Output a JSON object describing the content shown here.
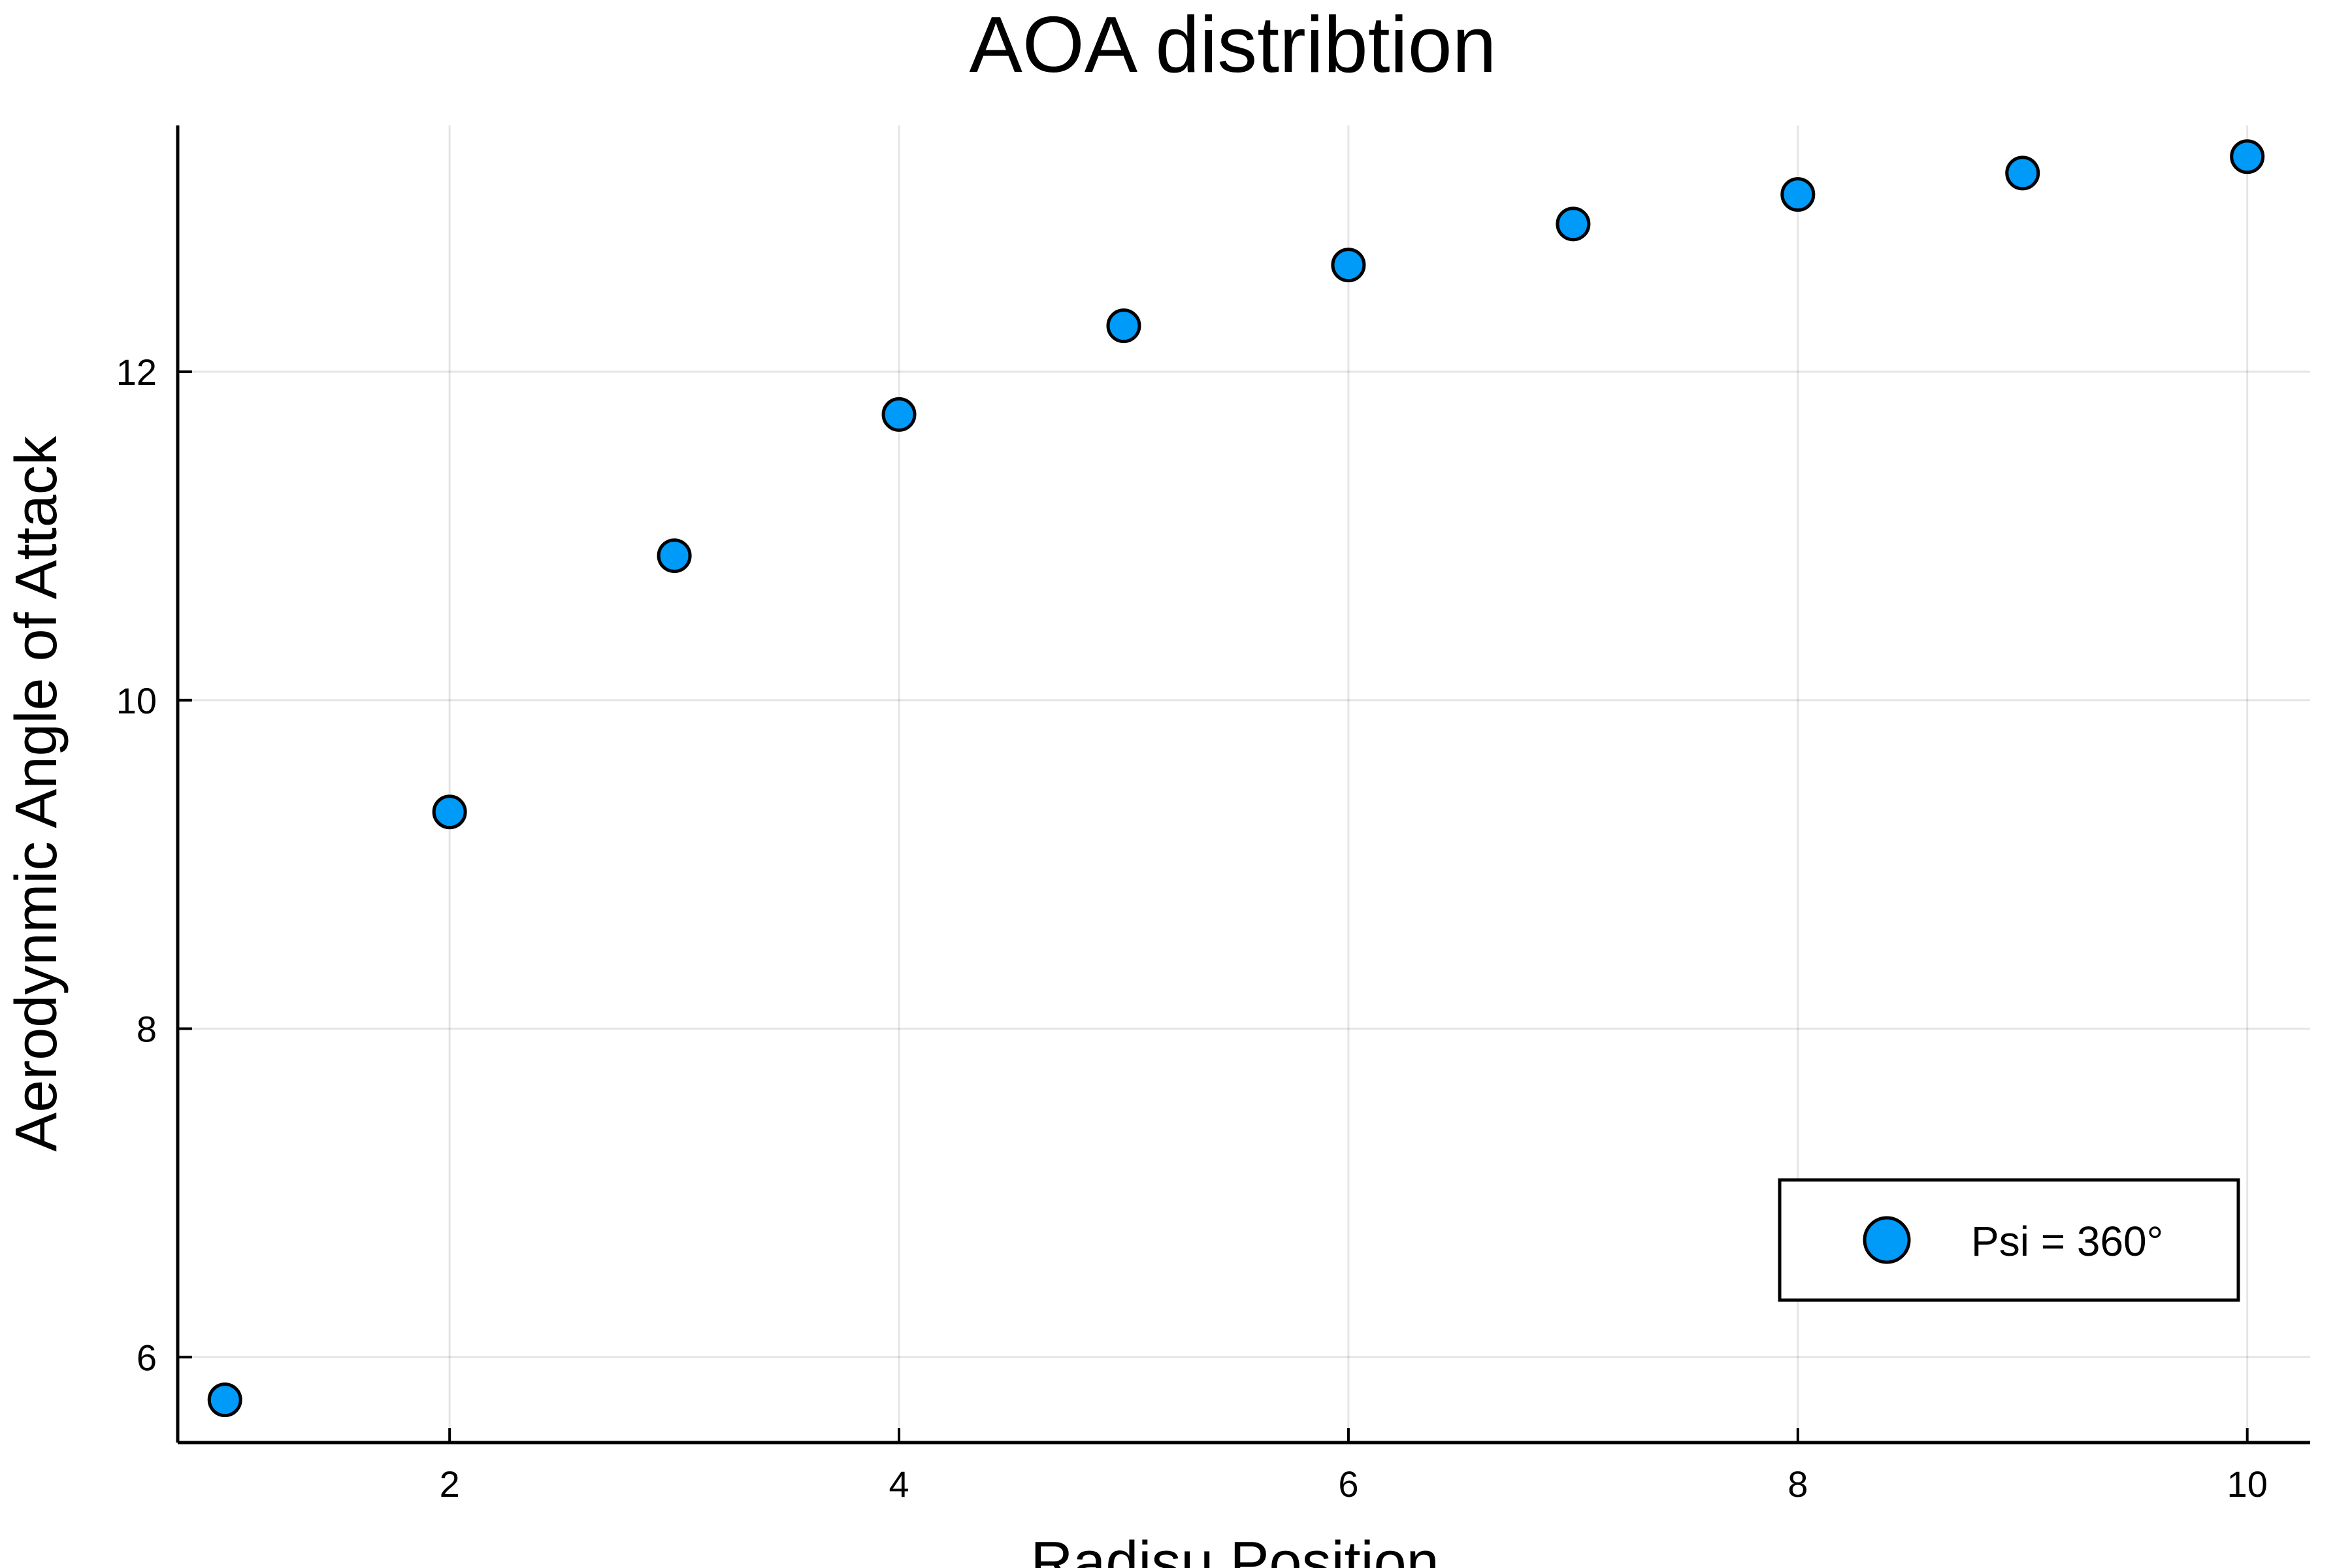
{
  "chart_data": {
    "type": "scatter",
    "title": "AOA distribtion",
    "xlabel": "Radisu Position",
    "ylabel": "Aerodynmic Angle of Attack",
    "xlim": [
      0.79,
      10.28
    ],
    "ylim": [
      5.48,
      13.5
    ],
    "xticks": [
      2,
      4,
      6,
      8,
      10
    ],
    "yticks": [
      6,
      8,
      10,
      12
    ],
    "grid": true,
    "legend_position": "bottom-right",
    "series": [
      {
        "name": "Psi = 360°",
        "color": "#009af9",
        "x": [
          1,
          2,
          3,
          4,
          5,
          6,
          7,
          8,
          9,
          10
        ],
        "y": [
          5.74,
          9.32,
          10.88,
          11.74,
          12.28,
          12.65,
          12.9,
          13.08,
          13.21,
          13.31
        ]
      }
    ]
  }
}
